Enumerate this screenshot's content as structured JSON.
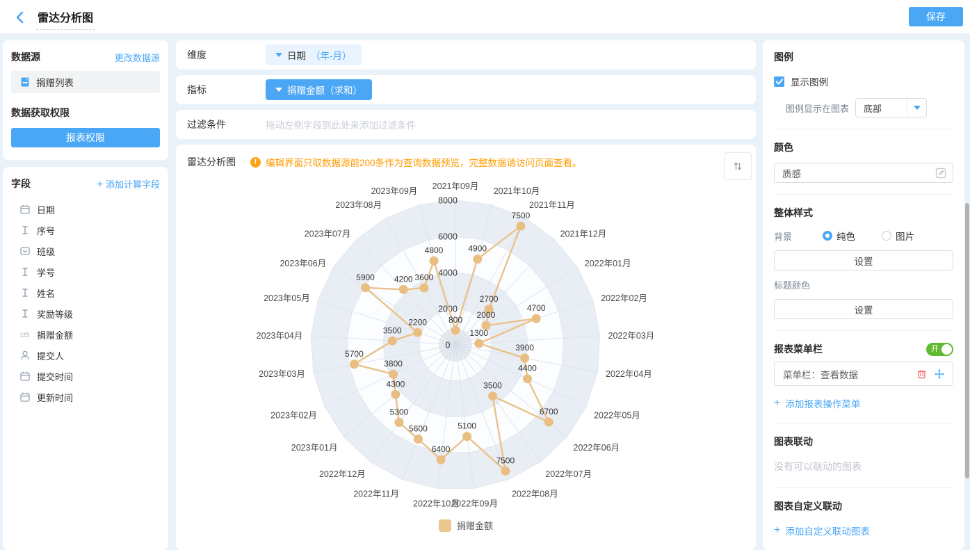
{
  "topbar": {
    "title": "雷达分析图",
    "save_label": "保存"
  },
  "icons": {
    "plus": "+"
  },
  "left": {
    "datasource": {
      "title": "数据源",
      "change_link": "更改数据源",
      "table_name": "捐赠列表"
    },
    "permission": {
      "title": "数据获取权限",
      "button_label": "报表权限"
    },
    "fields": {
      "title": "字段",
      "add_link": "添加计算字段",
      "items": [
        {
          "icon": "calendar",
          "label": "日期"
        },
        {
          "icon": "text",
          "label": "序号"
        },
        {
          "icon": "select",
          "label": "班级"
        },
        {
          "icon": "text",
          "label": "学号"
        },
        {
          "icon": "text",
          "label": "姓名"
        },
        {
          "icon": "text",
          "label": "奖励等级"
        },
        {
          "icon": "number",
          "label": "捐赠金额"
        },
        {
          "icon": "person",
          "label": "提交人"
        },
        {
          "icon": "calendar",
          "label": "提交时间"
        },
        {
          "icon": "calendar",
          "label": "更新时间"
        }
      ]
    }
  },
  "editor": {
    "dimension": {
      "label": "维度",
      "chip_name": "日期",
      "chip_detail": "（年-月）"
    },
    "metric": {
      "label": "指标",
      "chip": "捐赠金额（求和）"
    },
    "filter": {
      "label": "过滤条件",
      "placeholder": "拖动左侧字段到此处来添加过滤条件"
    },
    "chart_panel": {
      "title": "雷达分析图",
      "warning_mark": "!",
      "warning": "编辑界面只取数据源前200条作为查询数据预览，完整数据请访问页面查看。"
    }
  },
  "chart_data": {
    "type": "radar",
    "title": "",
    "categories": [
      "2021年09月",
      "2021年10月",
      "2021年11月",
      "2021年12月",
      "2022年01月",
      "2022年02月",
      "2022年03月",
      "2022年04月",
      "2022年05月",
      "2022年06月",
      "2022年07月",
      "2022年08月",
      "2022年09月",
      "2022年10月",
      "2022年11月",
      "2022年12月",
      "2023年01月",
      "2023年02月",
      "2023年03月",
      "2023年04月",
      "2023年05月",
      "2023年06月",
      "2023年07月",
      "2023年08月",
      "2023年09月"
    ],
    "series": [
      {
        "name": "捐赠金额",
        "values": [
          800,
          4900,
          7500,
          2700,
          2000,
          4700,
          1300,
          3900,
          4400,
          6700,
          3500,
          7500,
          5100,
          6400,
          5600,
          5300,
          4300,
          3800,
          5700,
          3500,
          2200,
          5900,
          4200,
          3600,
          4800
        ]
      }
    ],
    "radial_ticks": [
      0,
      2000,
      4000,
      6000,
      8000
    ],
    "max": 8000,
    "legend": {
      "position": "bottom",
      "entries": [
        "捐赠金额"
      ]
    },
    "line_color": "#EAC28A",
    "point_color": "#E9BE83"
  },
  "right": {
    "legend_section": {
      "title": "图例",
      "show_label": "显示图例",
      "checked": true,
      "position_label": "图例显示在图表",
      "position_value": "底部"
    },
    "color_section": {
      "title": "颜色",
      "value": "质感"
    },
    "style_section": {
      "title": "整体样式",
      "bg_label": "背景",
      "radio_solid": "纯色",
      "radio_image": "图片",
      "setting_button": "设置",
      "title_color_label": "标题颜色",
      "setting_button2": "设置"
    },
    "menu_section": {
      "title": "报表菜单栏",
      "toggle_label": "开",
      "item": "菜单栏：查看数据",
      "add_link": "添加报表操作菜单"
    },
    "linkage_section": {
      "title": "图表联动",
      "empty_text": "没有可以联动的图表"
    },
    "custom_linkage_section": {
      "title": "图表自定义联动",
      "add_link": "添加自定义联动图表"
    }
  },
  "colors": {
    "accent": "#4AA7F5",
    "warning": "#FF9C00",
    "toggle_on": "#5FBA31",
    "danger": "#F56C6C"
  }
}
